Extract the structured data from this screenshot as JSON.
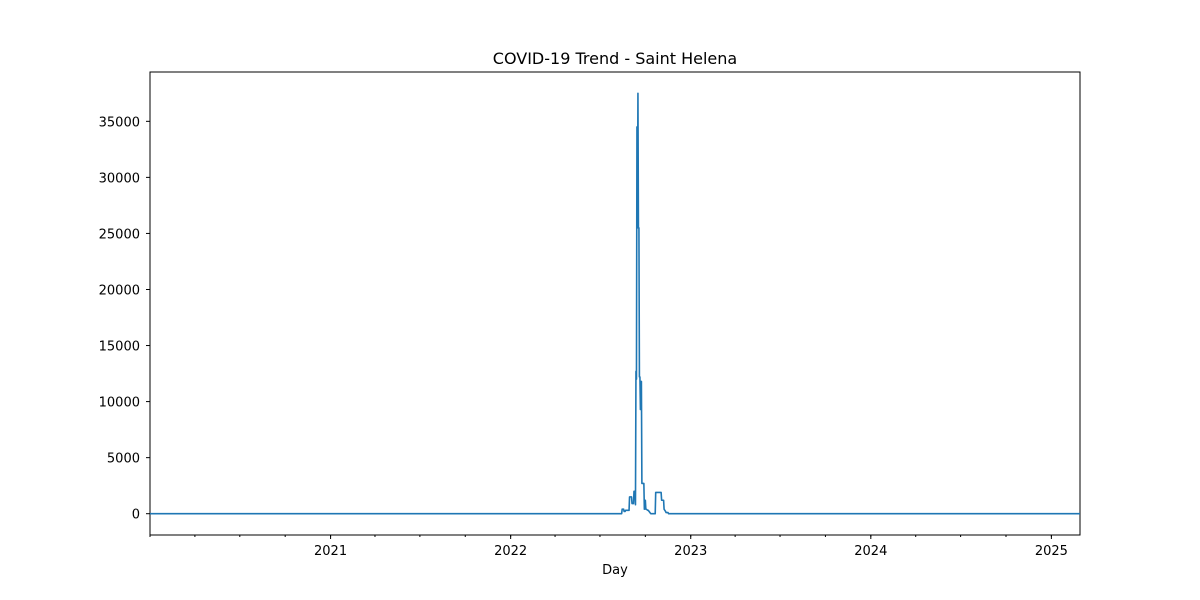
{
  "chart_data": {
    "type": "line",
    "title": "COVID-19 Trend - Saint Helena",
    "xlabel": "Day",
    "ylabel": "",
    "xlim": [
      "2020-01-01",
      "2025-02-28"
    ],
    "ylim": [
      -1900,
      39400
    ],
    "x_ticks": [
      {
        "date": "2021-01-01",
        "label": "2021"
      },
      {
        "date": "2022-01-01",
        "label": "2022"
      },
      {
        "date": "2023-01-01",
        "label": "2023"
      },
      {
        "date": "2024-01-01",
        "label": "2024"
      },
      {
        "date": "2025-01-01",
        "label": "2025"
      }
    ],
    "y_ticks": [
      {
        "value": 0,
        "label": "0"
      },
      {
        "value": 5000,
        "label": "5000"
      },
      {
        "value": 10000,
        "label": "10000"
      },
      {
        "value": 15000,
        "label": "15000"
      },
      {
        "value": 20000,
        "label": "20000"
      },
      {
        "value": 25000,
        "label": "25000"
      },
      {
        "value": 30000,
        "label": "30000"
      },
      {
        "value": 35000,
        "label": "35000"
      }
    ],
    "grid": false,
    "color": "#1f77b4",
    "series": [
      {
        "x": [
          "2020-01-01",
          "2022-08-14",
          "2022-08-15",
          "2022-08-18",
          "2022-08-19",
          "2022-08-21",
          "2022-08-22",
          "2022-08-29",
          "2022-08-30",
          "2022-09-03",
          "2022-09-04",
          "2022-09-07",
          "2022-09-08",
          "2022-09-10",
          "2022-09-11",
          "2022-09-12",
          "2022-09-13",
          "2022-09-14",
          "2022-09-15",
          "2022-09-16",
          "2022-09-17",
          "2022-09-18",
          "2022-09-19",
          "2022-09-20",
          "2022-09-21",
          "2022-09-22",
          "2022-09-23",
          "2022-09-24",
          "2022-09-25",
          "2022-09-26",
          "2022-09-27",
          "2022-09-28",
          "2022-09-29",
          "2022-09-30",
          "2022-10-01",
          "2022-10-02",
          "2022-10-03",
          "2022-10-06",
          "2022-10-07",
          "2022-10-12",
          "2022-10-13",
          "2022-10-21",
          "2022-10-22",
          "2022-10-29",
          "2022-10-30",
          "2022-11-02",
          "2022-11-03",
          "2022-11-07",
          "2022-11-08",
          "2022-11-11",
          "2022-11-12",
          "2022-11-16",
          "2022-11-17",
          "2025-02-28"
        ],
        "y": [
          0,
          0,
          400,
          400,
          200,
          200,
          300,
          300,
          1500,
          1500,
          900,
          900,
          2000,
          2000,
          800,
          12700,
          12000,
          34500,
          25500,
          37500,
          25500,
          25500,
          12200,
          12200,
          9300,
          11800,
          11800,
          2700,
          2700,
          2700,
          2700,
          2700,
          400,
          1200,
          1200,
          400,
          400,
          300,
          300,
          0,
          0,
          0,
          1900,
          1900,
          1900,
          1900,
          1200,
          1200,
          400,
          200,
          100,
          100,
          0,
          0
        ]
      }
    ]
  }
}
